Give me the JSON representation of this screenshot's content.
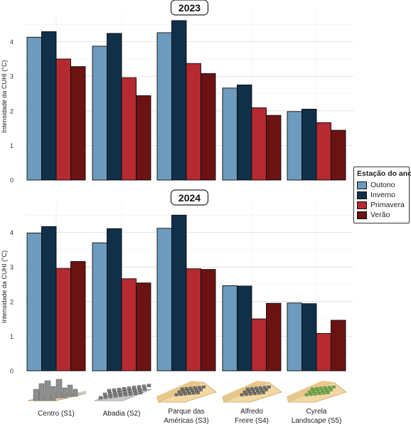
{
  "colors": {
    "Outono": "#6d9bbd",
    "Inverno": "#10304a",
    "Primavera": "#b52a30",
    "Verão": "#6b1313"
  },
  "legend": {
    "title": "Estação do ano",
    "items": [
      "Outono",
      "Inverno",
      "Primavera",
      "Verão"
    ]
  },
  "x_labels": [
    [
      "Centro (S1)"
    ],
    [
      "Abadia (S2)"
    ],
    [
      "Parque das",
      "Américas (S3)"
    ],
    [
      "Alfredo",
      "Freire (S4)"
    ],
    [
      "Cyrela",
      "Landscape (S5)"
    ]
  ],
  "site_icons": [
    "city-block-icon",
    "grid-buildings-icon",
    "sloped-lot-buildings-icon",
    "sloped-lot-buildings-icon",
    "green-lot-icon"
  ],
  "chart_data": [
    {
      "type": "bar",
      "title": "2023",
      "ylabel": "Intensidade da CUHI (°C)",
      "xlabel": "",
      "ylim": [
        0,
        4.6
      ],
      "yticks": [
        0,
        1,
        2,
        3,
        4
      ],
      "categories": [
        "Centro (S1)",
        "Abadia (S2)",
        "Parque das Américas (S3)",
        "Alfredo Freire (S4)",
        "Cyrela Landscape (S5)"
      ],
      "series": [
        {
          "name": "Outono",
          "values": [
            4.13,
            3.87,
            4.26,
            2.66,
            1.98
          ]
        },
        {
          "name": "Inverno",
          "values": [
            4.29,
            4.24,
            4.61,
            2.75,
            2.05
          ]
        },
        {
          "name": "Primavera",
          "values": [
            3.5,
            2.96,
            3.37,
            2.09,
            1.66
          ]
        },
        {
          "name": "Verão",
          "values": [
            3.28,
            2.44,
            3.08,
            1.87,
            1.44
          ]
        }
      ]
    },
    {
      "type": "bar",
      "title": "2024",
      "ylabel": "Intensidade da CUHI (°C)",
      "xlabel": "",
      "ylim": [
        0,
        4.6
      ],
      "yticks": [
        0,
        1,
        2,
        3,
        4
      ],
      "categories": [
        "Centro (S1)",
        "Abadia (S2)",
        "Parque das Américas (S3)",
        "Alfredo Freire (S4)",
        "Cyrela Landscape (S5)"
      ],
      "series": [
        {
          "name": "Outono",
          "values": [
            3.98,
            3.7,
            4.12,
            2.46,
            1.96
          ]
        },
        {
          "name": "Inverno",
          "values": [
            4.17,
            4.11,
            4.5,
            2.45,
            1.94
          ]
        },
        {
          "name": "Primavera",
          "values": [
            2.96,
            2.66,
            2.95,
            1.5,
            1.08
          ]
        },
        {
          "name": "Verão",
          "values": [
            3.16,
            2.54,
            2.93,
            1.95,
            1.46
          ]
        }
      ]
    }
  ]
}
